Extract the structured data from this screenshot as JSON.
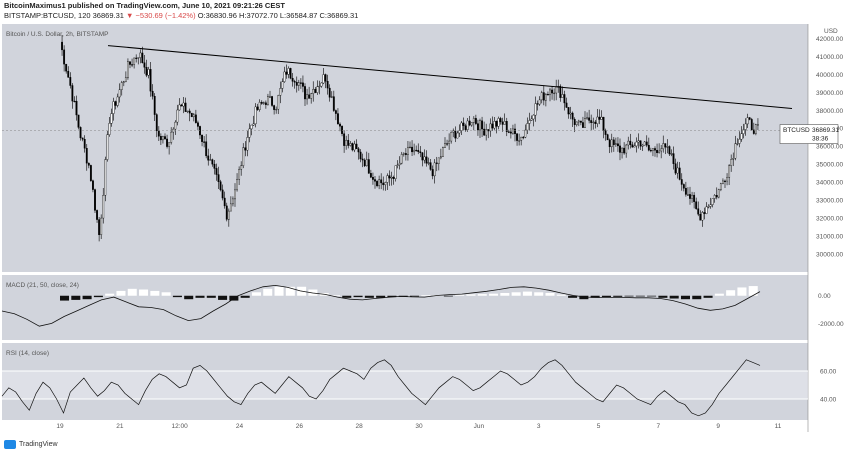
{
  "header": {
    "line1": "BitcoinMaximus1 published on TradingView.com, June 10, 2021 09:21:26 CEST",
    "symbol": "BITSTAMP:BTCUSD, 120",
    "price_last": "36869.31",
    "change": "▼ −530.69 (−1.42%)",
    "ohlc_o": "O:36830.96",
    "ohlc_h": "H:37072.70",
    "ohlc_l": "L:36584.87",
    "ohlc_c": "C:36869.31"
  },
  "panes": {
    "main_legend": "Bitcoin / U.S. Dollar, 2h, BITSTAMP",
    "macd_legend": "MACD (21, 50, close, 24)",
    "rsi_legend": "RSI (14, close)"
  },
  "price_label": {
    "name": "BTCUSD",
    "value": "36869.31",
    "countdown": "38:36"
  },
  "footer": {
    "brand": "TradingView"
  },
  "colors": {
    "pane_bg": "#d1d4dc",
    "candle": "#000000",
    "trendline": "#000000",
    "rsi_band": "#ffffff"
  },
  "chart_data": [
    {
      "type": "candlestick",
      "title": "Bitcoin / U.S. Dollar, 2h, BITSTAMP",
      "x_ticks": [
        "19",
        "21",
        "12:00",
        "24",
        "26",
        "28",
        "30",
        "Jun",
        "3",
        "5",
        "7",
        "9",
        "11"
      ],
      "y_unit": "USD",
      "y_ticks": [
        30000,
        31000,
        32000,
        33000,
        34000,
        35000,
        36000,
        37000,
        38000,
        39000,
        40000,
        41000,
        42000
      ],
      "ylim": [
        29000,
        42800
      ],
      "last_price": 36869.31,
      "trendline": {
        "from": {
          "x": "May 20",
          "y": 41600
        },
        "to": {
          "x": "Jun 10",
          "y": 38100
        }
      },
      "approx_closes": [
        41800,
        39500,
        36800,
        34800,
        31000,
        37500,
        39000,
        40500,
        41200,
        40000,
        36500,
        36200,
        38200,
        38000,
        37200,
        35500,
        34000,
        32200,
        34000,
        36500,
        38000,
        38600,
        38300,
        40200,
        39800,
        38800,
        39300,
        39900,
        38000,
        36200,
        35800,
        35200,
        34200,
        33900,
        34500,
        35500,
        35800,
        35100,
        34600,
        35800,
        36700,
        37000,
        37600,
        36900,
        37200,
        37300,
        36700,
        36500,
        37900,
        38700,
        39300,
        39000,
        37600,
        37000,
        37600,
        37400,
        36100,
        35800,
        36000,
        36300,
        35700,
        36000,
        35600,
        34300,
        33300,
        32100,
        32800,
        33500,
        34800,
        36600,
        37300,
        36869
      ]
    },
    {
      "type": "line",
      "title": "MACD (21, 50, close, 24)",
      "y_ticks": [
        0,
        -2000
      ],
      "ylim": [
        -3200,
        1500
      ],
      "macd": [
        -1100,
        -1300,
        -1700,
        -2200,
        -2000,
        -1500,
        -1100,
        -700,
        -300,
        -100,
        -450,
        -800,
        -850,
        -1000,
        -1450,
        -1800,
        -1650,
        -1100,
        -600,
        0,
        350,
        650,
        750,
        600,
        350,
        200,
        100,
        -100,
        -250,
        -300,
        -200,
        -120,
        -50,
        -80,
        -100,
        20,
        80,
        120,
        220,
        320,
        450,
        600,
        650,
        550,
        400,
        200,
        20,
        -100,
        -120,
        -120,
        -120,
        -150,
        -150,
        -200,
        -350,
        -600,
        -900,
        -1050,
        -950,
        -700,
        -200,
        300
      ],
      "histogram": [
        -350,
        -300,
        -250,
        -100,
        150,
        350,
        500,
        450,
        350,
        250,
        -100,
        -250,
        -150,
        -150,
        -300,
        -350,
        -150,
        250,
        500,
        650,
        650,
        650,
        450,
        200,
        50,
        -150,
        -100,
        -150,
        -150,
        -100,
        -80,
        -50,
        50,
        50,
        -50,
        80,
        100,
        120,
        150,
        200,
        250,
        300,
        250,
        200,
        80,
        -150,
        -250,
        -150,
        -100,
        -80,
        -50,
        -50,
        -50,
        -150,
        -200,
        -250,
        -250,
        -150,
        150,
        400,
        600,
        700
      ]
    },
    {
      "type": "line",
      "title": "RSI (14, close)",
      "y_ticks": [
        60,
        40
      ],
      "ylim": [
        25,
        80
      ],
      "band": [
        40,
        60
      ],
      "values": [
        42,
        48,
        45,
        38,
        32,
        44,
        52,
        48,
        40,
        30,
        45,
        50,
        55,
        48,
        42,
        46,
        52,
        50,
        44,
        40,
        36,
        46,
        54,
        58,
        56,
        52,
        48,
        50,
        62,
        64,
        60,
        54,
        48,
        42,
        38,
        36,
        44,
        50,
        52,
        48,
        44,
        50,
        56,
        52,
        48,
        42,
        40,
        46,
        54,
        58,
        62,
        60,
        58,
        54,
        62,
        66,
        68,
        64,
        56,
        50,
        44,
        40,
        36,
        42,
        48,
        52,
        56,
        54,
        50,
        46,
        48,
        52,
        56,
        60,
        58,
        54,
        50,
        52,
        56,
        62,
        66,
        68,
        64,
        58,
        52,
        48,
        44,
        40,
        38,
        44,
        50,
        48,
        44,
        40,
        38,
        36,
        42,
        46,
        42,
        38,
        36,
        30,
        28,
        30,
        36,
        44,
        50,
        56,
        62,
        68,
        66,
        64
      ]
    }
  ]
}
